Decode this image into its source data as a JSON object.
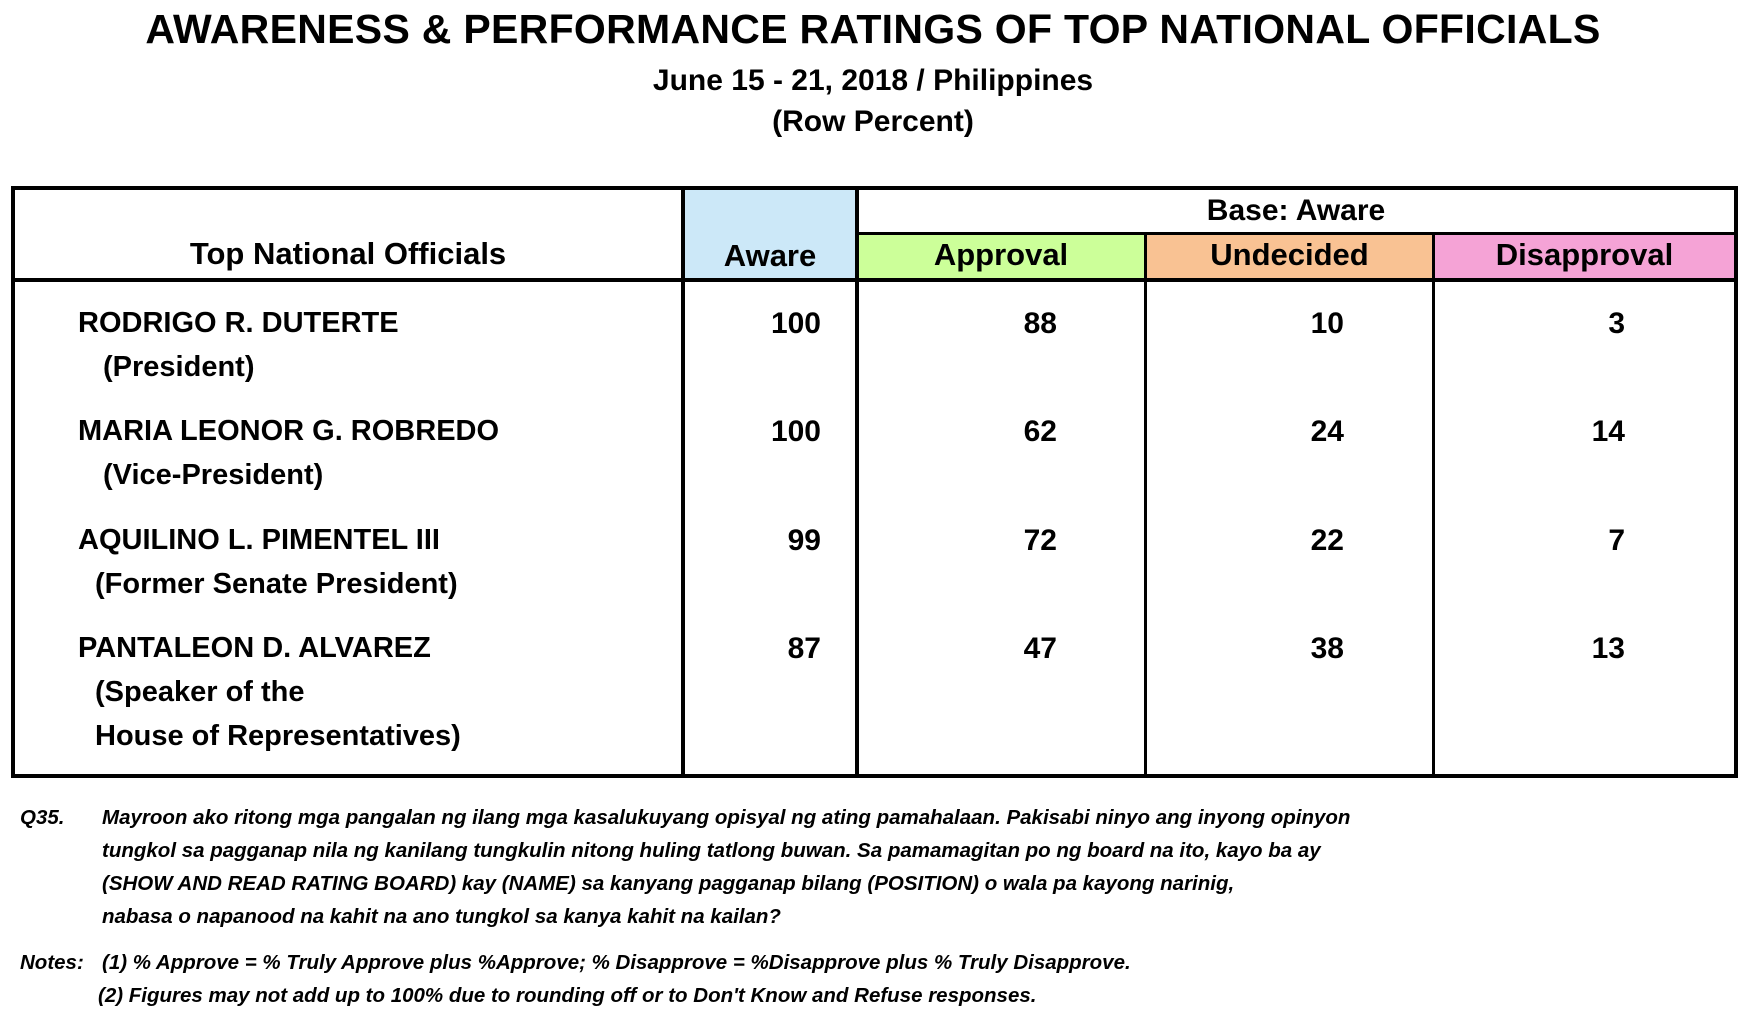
{
  "header": {
    "title": "AWARENESS & PERFORMANCE RATINGS OF TOP NATIONAL OFFICIALS",
    "subtitle_date": "June 15 - 21, 2018 / Philippines",
    "subtitle_unit": "(Row Percent)"
  },
  "table": {
    "col_officials": "Top National Officials",
    "col_aware": "Aware",
    "group_base": "Base: Aware",
    "col_approval": "Approval",
    "col_undecided": "Undecided",
    "col_disapproval": "Disapproval",
    "colors": {
      "aware": "#cce8f8",
      "approval": "#ccff99",
      "undecided": "#f9c293",
      "disapproval": "#f5a3d6"
    },
    "rows": [
      {
        "name": "RODRIGO R. DUTERTE",
        "position": [
          "(President)"
        ],
        "aware": "100",
        "approval": "88",
        "undecided": "10",
        "disapproval": "3"
      },
      {
        "name": "MARIA LEONOR G. ROBREDO",
        "position": [
          "(Vice-President)"
        ],
        "aware": "100",
        "approval": "62",
        "undecided": "24",
        "disapproval": "14"
      },
      {
        "name": "AQUILINO L. PIMENTEL III",
        "position": [
          "(Former Senate President)"
        ],
        "aware": "99",
        "approval": "72",
        "undecided": "22",
        "disapproval": "7"
      },
      {
        "name": "PANTALEON D. ALVAREZ",
        "position": [
          "(Speaker of the",
          "House of Representatives)"
        ],
        "aware": "87",
        "approval": "47",
        "undecided": "38",
        "disapproval": "13"
      }
    ]
  },
  "footnotes": {
    "q_label": "Q35.",
    "q_lines": [
      "Mayroon ako ritong mga pangalan ng ilang mga kasalukuyang opisyal ng ating pamahalaan.  Pakisabi ninyo ang inyong opinyon",
      "tungkol sa pagganap nila ng kanilang tungkulin nitong huling tatlong buwan. Sa pamamagitan po ng board na ito, kayo ba ay",
      "(SHOW AND READ RATING BOARD) kay (NAME) sa kanyang pagganap bilang (POSITION) o wala pa kayong narinig,",
      "nabasa o napanood na kahit na ano tungkol sa kanya kahit na kailan?"
    ],
    "notes_label": "Notes:",
    "notes": [
      "(1) % Approve = % Truly Approve plus %Approve; % Disapprove = %Disapprove plus % Truly Disapprove.",
      "(2) Figures may not add up to 100% due to rounding off or to Don't Know and Refuse responses."
    ]
  }
}
